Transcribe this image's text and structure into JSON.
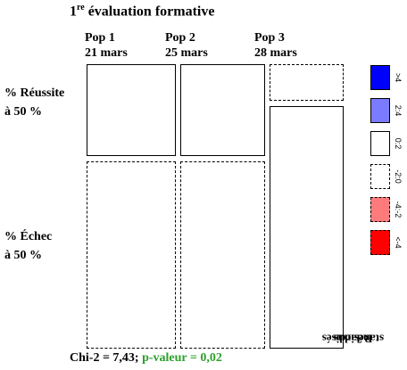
{
  "chart_data": {
    "type": "mosaic",
    "title": "1re évaluation formative",
    "title_main": "1",
    "title_sup": "re",
    "title_rest": " évaluation formative",
    "columns": [
      {
        "name": "Pop 1",
        "date": "21 mars"
      },
      {
        "name": "Pop 2",
        "date": "25 mars"
      },
      {
        "name": "Pop 3",
        "date": "28 mars"
      }
    ],
    "rows": [
      {
        "line1": "% Réussite",
        "line2": "à 50 %"
      },
      {
        "line1": "% Échec",
        "line2": "à 50 %"
      }
    ],
    "column_share": [
      0.36,
      0.34,
      0.3
    ],
    "success_share": [
      0.33,
      0.33,
      0.13
    ],
    "standardized_residual_bin": [
      [
        "0:2",
        "0:2",
        "-2:0"
      ],
      [
        "-2:0",
        "-2:0",
        "0:2"
      ]
    ],
    "statistic_text": "Chi-2 = 7,43;",
    "pvalue_text": "p-valeur = 0,02",
    "legend": {
      "title_line1": "Résidus",
      "title_line2": "standardisés",
      "items": [
        {
          "label": ">4",
          "fill": "#0000ff",
          "style": "solid"
        },
        {
          "label": "2:4",
          "fill": "#7b7bff",
          "style": "solid"
        },
        {
          "label": "0:2",
          "fill": "#ffffff",
          "style": "solid"
        },
        {
          "label": "-2:0",
          "fill": "#ffffff",
          "style": "dashed"
        },
        {
          "label": "-4:-2",
          "fill": "#ff7b7b",
          "style": "dashed"
        },
        {
          "label": "<-4",
          "fill": "#ff0000",
          "style": "dashed"
        }
      ]
    }
  }
}
